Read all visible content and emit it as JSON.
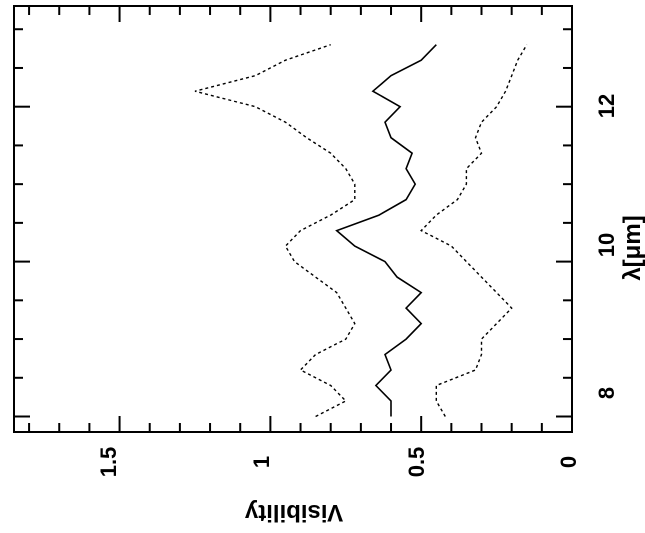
{
  "chart_data": {
    "type": "line",
    "orientation": "rotated 90 degrees clockwise (x axis vertical, y axis horizontal)",
    "xlabel": "λ[μm]",
    "ylabel": "Visibility",
    "xlim": [
      7.8,
      13.3
    ],
    "ylim": [
      0,
      1.85
    ],
    "x_ticks": [
      8,
      10,
      12
    ],
    "y_ticks": [
      0,
      0.5,
      1,
      1.5
    ],
    "y_tick_labels": [
      "0",
      "0.5",
      "1",
      "1.5"
    ],
    "grid": false,
    "series": [
      {
        "style": "solid",
        "x": [
          8.0,
          8.2,
          8.4,
          8.6,
          8.8,
          9.0,
          9.2,
          9.4,
          9.6,
          9.8,
          10.0,
          10.2,
          10.4,
          10.6,
          10.8,
          11.0,
          11.2,
          11.4,
          11.6,
          11.8,
          12.0,
          12.2,
          12.4,
          12.6,
          12.8
        ],
        "y": [
          0.6,
          0.6,
          0.65,
          0.6,
          0.62,
          0.55,
          0.5,
          0.55,
          0.5,
          0.58,
          0.62,
          0.72,
          0.78,
          0.64,
          0.55,
          0.52,
          0.55,
          0.53,
          0.6,
          0.62,
          0.57,
          0.66,
          0.6,
          0.5,
          0.45
        ]
      },
      {
        "style": "dotted",
        "x": [
          8.0,
          8.2,
          8.4,
          8.6,
          8.8,
          9.0,
          9.2,
          9.4,
          9.6,
          9.8,
          10.0,
          10.2,
          10.4,
          10.6,
          10.8,
          11.0,
          11.2,
          11.4,
          11.6,
          11.8,
          12.0,
          12.2,
          12.4,
          12.6,
          12.8
        ],
        "y": [
          0.85,
          0.75,
          0.8,
          0.9,
          0.85,
          0.75,
          0.72,
          0.75,
          0.78,
          0.85,
          0.92,
          0.95,
          0.9,
          0.8,
          0.72,
          0.72,
          0.75,
          0.8,
          0.88,
          0.95,
          1.05,
          1.25,
          1.05,
          0.95,
          0.8
        ]
      },
      {
        "style": "dotted",
        "x": [
          8.0,
          8.2,
          8.4,
          8.6,
          8.8,
          9.0,
          9.2,
          9.4,
          9.6,
          9.8,
          10.0,
          10.2,
          10.4,
          10.6,
          10.8,
          11.0,
          11.2,
          11.4,
          11.6,
          11.8,
          12.0,
          12.2,
          12.4,
          12.6,
          12.8
        ],
        "y": [
          0.42,
          0.45,
          0.45,
          0.32,
          0.3,
          0.3,
          0.25,
          0.2,
          0.25,
          0.3,
          0.35,
          0.4,
          0.5,
          0.45,
          0.38,
          0.35,
          0.35,
          0.3,
          0.32,
          0.3,
          0.25,
          0.22,
          0.2,
          0.18,
          0.15
        ]
      }
    ]
  }
}
